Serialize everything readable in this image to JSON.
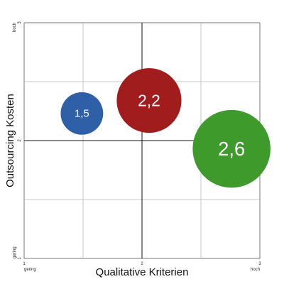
{
  "chart_data": {
    "type": "bubble",
    "title": "",
    "xlabel": "Qualitative Kriterien",
    "ylabel": "Outsourcing Kosten",
    "xlim": [
      1,
      3
    ],
    "ylim": [
      1,
      3
    ],
    "grid": true,
    "x_ticks": [
      {
        "value": 1,
        "label": "1"
      },
      {
        "value": 2,
        "label": "2"
      },
      {
        "value": 3,
        "label": "3"
      }
    ],
    "y_ticks": [
      {
        "value": 1,
        "label": "1"
      },
      {
        "value": 2,
        "label": "2"
      },
      {
        "value": 3,
        "label": "3"
      }
    ],
    "x_end_labels": {
      "low": "gering",
      "high": "hoch"
    },
    "y_end_labels": {
      "low": "gering",
      "high": "hoch"
    },
    "bubbles": [
      {
        "label": "1,5",
        "x": 1.49,
        "y": 2.23,
        "size": 1.5,
        "color": "#2f5fa6"
      },
      {
        "label": "2,2",
        "x": 2.06,
        "y": 2.34,
        "size": 2.2,
        "color": "#a11d1d"
      },
      {
        "label": "2,6",
        "x": 2.76,
        "y": 1.93,
        "size": 2.6,
        "color": "#3d9a2b"
      }
    ]
  }
}
